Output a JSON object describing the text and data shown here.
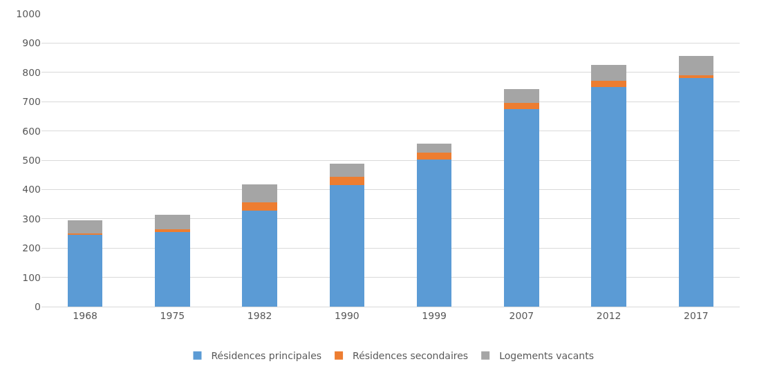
{
  "chart_data": {
    "type": "bar",
    "stacked": true,
    "categories": [
      "1968",
      "1975",
      "1982",
      "1990",
      "1999",
      "2007",
      "2012",
      "2017"
    ],
    "series": [
      {
        "name": "Résidences principales",
        "color": "#5b9bd5",
        "values": [
          246,
          255,
          328,
          416,
          503,
          674,
          750,
          780
        ]
      },
      {
        "name": "Résidences secondaires",
        "color": "#ed7d31",
        "values": [
          4,
          9,
          27,
          27,
          22,
          21,
          22,
          9
        ]
      },
      {
        "name": "Logements vacants",
        "color": "#a5a5a5",
        "values": [
          45,
          49,
          63,
          46,
          32,
          49,
          53,
          68
        ]
      }
    ],
    "ylim": [
      0,
      1000
    ],
    "yticks": [
      0,
      100,
      200,
      300,
      400,
      500,
      600,
      700,
      800,
      900,
      1000
    ],
    "grid": "y",
    "legend": "bottom"
  }
}
